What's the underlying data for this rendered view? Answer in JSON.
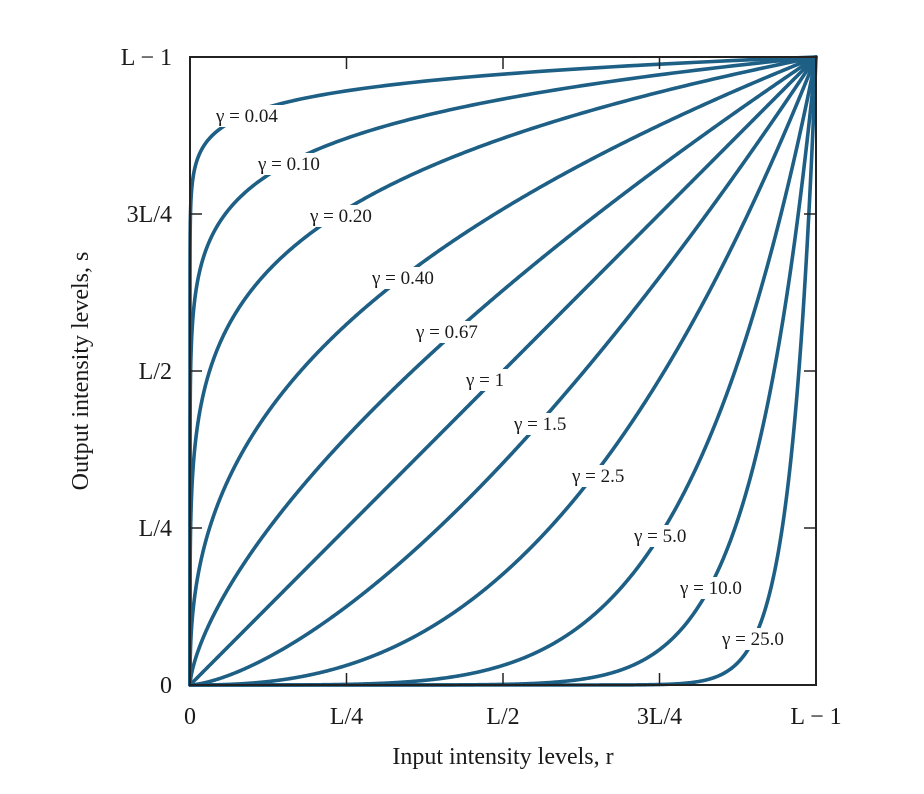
{
  "chart_data": {
    "type": "line",
    "title": "",
    "xlabel": "Input intensity levels, r",
    "ylabel": "Output intensity levels, s",
    "xlim": [
      0,
      1
    ],
    "ylim": [
      0,
      1
    ],
    "grid": false,
    "x_ticks": [
      {
        "value": 0,
        "label": "0"
      },
      {
        "value": 0.25,
        "label": "L/4"
      },
      {
        "value": 0.5,
        "label": "L/2"
      },
      {
        "value": 0.75,
        "label": "3L/4"
      },
      {
        "value": 1,
        "label": "L − 1"
      }
    ],
    "y_ticks": [
      {
        "value": 0,
        "label": "0"
      },
      {
        "value": 0.25,
        "label": "L/4"
      },
      {
        "value": 0.5,
        "label": "L/2"
      },
      {
        "value": 0.75,
        "label": "3L/4"
      },
      {
        "value": 1,
        "label": "L − 1"
      }
    ],
    "function": "s = r^γ",
    "line_color": "#1d5f85",
    "series": [
      {
        "name": "γ = 0.04",
        "gamma": 0.04
      },
      {
        "name": "γ = 0.10",
        "gamma": 0.1
      },
      {
        "name": "γ = 0.20",
        "gamma": 0.2
      },
      {
        "name": "γ = 0.40",
        "gamma": 0.4
      },
      {
        "name": "γ = 0.67",
        "gamma": 0.67
      },
      {
        "name": "γ = 1",
        "gamma": 1
      },
      {
        "name": "γ = 1.5",
        "gamma": 1.5
      },
      {
        "name": "γ = 2.5",
        "gamma": 2.5
      },
      {
        "name": "γ = 5.0",
        "gamma": 5.0
      },
      {
        "name": "γ = 10.0",
        "gamma": 10.0
      },
      {
        "name": "γ = 25.0",
        "gamma": 25.0
      }
    ]
  }
}
